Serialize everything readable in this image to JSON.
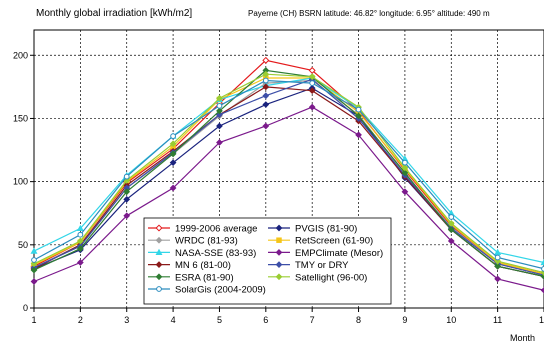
{
  "chart_data": {
    "type": "line",
    "title": "Monthly global irradiation [kWh/m2]",
    "subtitle": "Payerne (CH) BSRN     latitude: 46.82°  longitude: 6.95°  altitude: 490 m",
    "xlabel": "Month",
    "ylabel": "",
    "x": [
      1,
      2,
      3,
      4,
      5,
      6,
      7,
      8,
      9,
      10,
      11,
      12
    ],
    "xlim": [
      1,
      12
    ],
    "ylim": [
      0,
      220
    ],
    "xticks": [
      "1",
      "2",
      "3",
      "4",
      "5",
      "6",
      "7",
      "8",
      "9",
      "10",
      "11",
      "12"
    ],
    "yticks": [
      "0",
      "50",
      "100",
      "150",
      "200"
    ],
    "yticks_values": [
      0,
      50,
      100,
      150,
      200
    ],
    "grid": true,
    "legend_position": "bottom-center",
    "series": [
      {
        "name": "1999-2006 average",
        "color": "#e41a1c",
        "marker": "diamond-open",
        "values": [
          33,
          52,
          99,
          126,
          162,
          196,
          188,
          156,
          109,
          65,
          36,
          27
        ]
      },
      {
        "name": "PVGIS (81-90)",
        "color": "#1a237e",
        "marker": "diamond",
        "values": [
          31,
          46,
          86,
          115,
          144,
          161,
          174,
          152,
          103,
          62,
          33,
          25
        ]
      },
      {
        "name": "WRDC (81-93)",
        "color": "#a0a0a0",
        "marker": "diamond",
        "values": [
          32,
          50,
          95,
          122,
          152,
          178,
          180,
          153,
          106,
          64,
          35,
          26
        ]
      },
      {
        "name": "RetScreen (61-90)",
        "color": "#f5c518",
        "marker": "square",
        "values": [
          34,
          52,
          100,
          128,
          165,
          182,
          182,
          155,
          110,
          66,
          36,
          27
        ]
      },
      {
        "name": "NASA-SSE (83-93)",
        "color": "#33d6e8",
        "marker": "triangle",
        "values": [
          45,
          63,
          105,
          136,
          165,
          176,
          182,
          158,
          118,
          75,
          44,
          36
        ]
      },
      {
        "name": "EMPClimate (Mesor)",
        "color": "#7b1a8c",
        "marker": "diamond",
        "values": [
          21,
          36,
          73,
          95,
          131,
          144,
          159,
          137,
          92,
          53,
          23,
          14
        ]
      },
      {
        "name": "MN 6  (81-00)",
        "color": "#8b1a1a",
        "marker": "diamond",
        "values": [
          31,
          50,
          97,
          124,
          153,
          175,
          172,
          148,
          104,
          62,
          33,
          25
        ]
      },
      {
        "name": "TMY or DRY",
        "color": "#3d4fa8",
        "marker": "diamond",
        "values": [
          32,
          49,
          95,
          123,
          153,
          168,
          181,
          150,
          105,
          63,
          35,
          26
        ]
      },
      {
        "name": "ESRA (81-90)",
        "color": "#2e7d32",
        "marker": "diamond",
        "values": [
          30,
          47,
          92,
          122,
          156,
          188,
          183,
          152,
          107,
          62,
          33,
          25
        ]
      },
      {
        "name": "Satellight (96-00)",
        "color": "#9acd32",
        "marker": "diamond",
        "values": [
          35,
          53,
          101,
          130,
          166,
          185,
          183,
          159,
          111,
          67,
          37,
          28
        ]
      },
      {
        "name": "SolarGis (2004-2009)",
        "color": "#2b8cbe",
        "marker": "circle-open",
        "values": [
          38,
          58,
          104,
          136,
          160,
          180,
          178,
          157,
          115,
          72,
          40,
          31
        ]
      }
    ]
  }
}
